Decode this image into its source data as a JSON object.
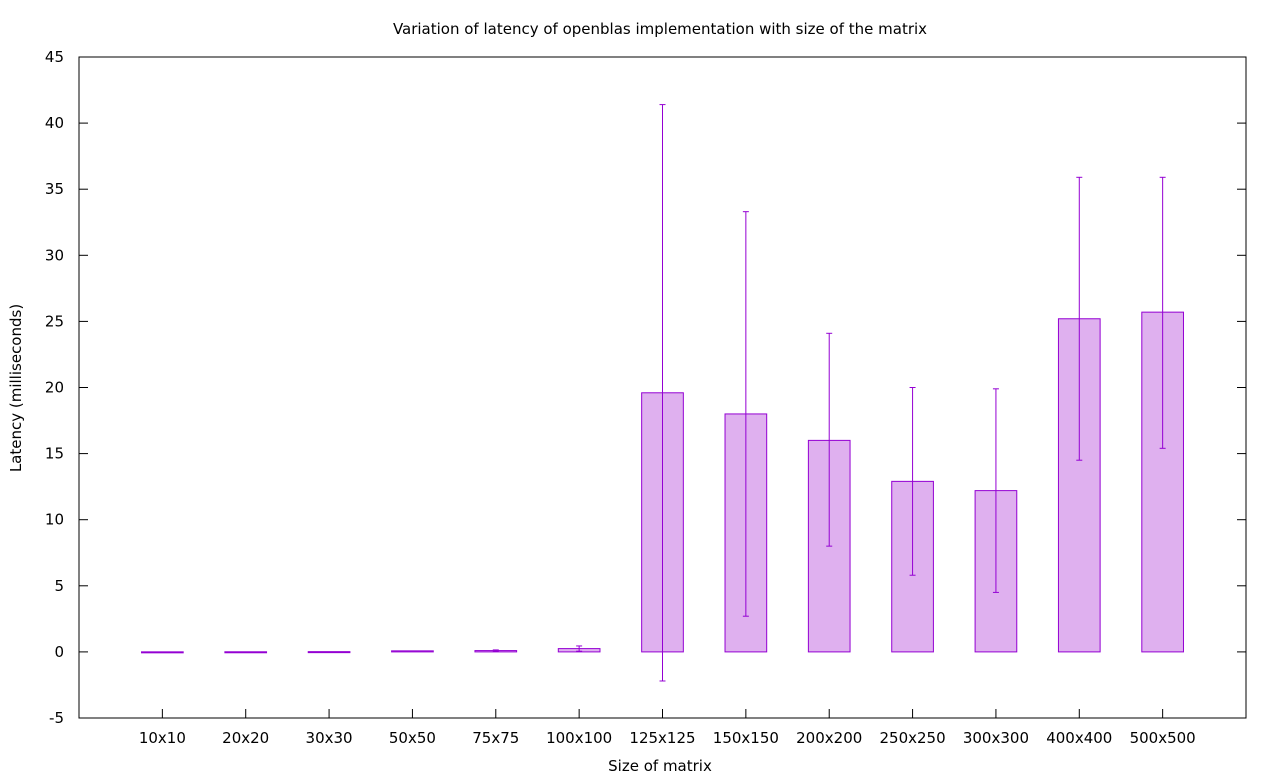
{
  "chart_data": {
    "type": "bar",
    "title": "Variation of latency of openblas implementation with size of the matrix",
    "xlabel": "Size of matrix",
    "ylabel": "Latency (milliseconds)",
    "ylim": [
      -5,
      45
    ],
    "yticks": [
      -5,
      0,
      5,
      10,
      15,
      20,
      25,
      30,
      35,
      40,
      45
    ],
    "categories": [
      "10x10",
      "20x20",
      "30x30",
      "50x50",
      "75x75",
      "100x100",
      "125x125",
      "150x150",
      "200x200",
      "250x250",
      "300x300",
      "400x400",
      "500x500"
    ],
    "series": [
      {
        "values": [
          0.005,
          0.01,
          0.02,
          0.08,
          0.1,
          0.25,
          19.6,
          18.0,
          16.0,
          12.9,
          12.2,
          25.2,
          25.7
        ],
        "error_low": [
          0.0,
          0.0,
          0.0,
          0.05,
          0.05,
          0.05,
          -2.2,
          2.7,
          8.0,
          5.8,
          4.5,
          14.5,
          15.4
        ],
        "error_high": [
          0.01,
          0.02,
          0.04,
          0.11,
          0.15,
          0.45,
          41.4,
          33.3,
          24.1,
          20.0,
          19.9,
          35.9,
          35.9
        ]
      }
    ],
    "colors": {
      "bar_fill": "#dfb0ef",
      "bar_stroke": "#9400d3",
      "error_bar": "#9400d3",
      "axis": "#000000"
    },
    "grid": false,
    "legend": "none"
  }
}
